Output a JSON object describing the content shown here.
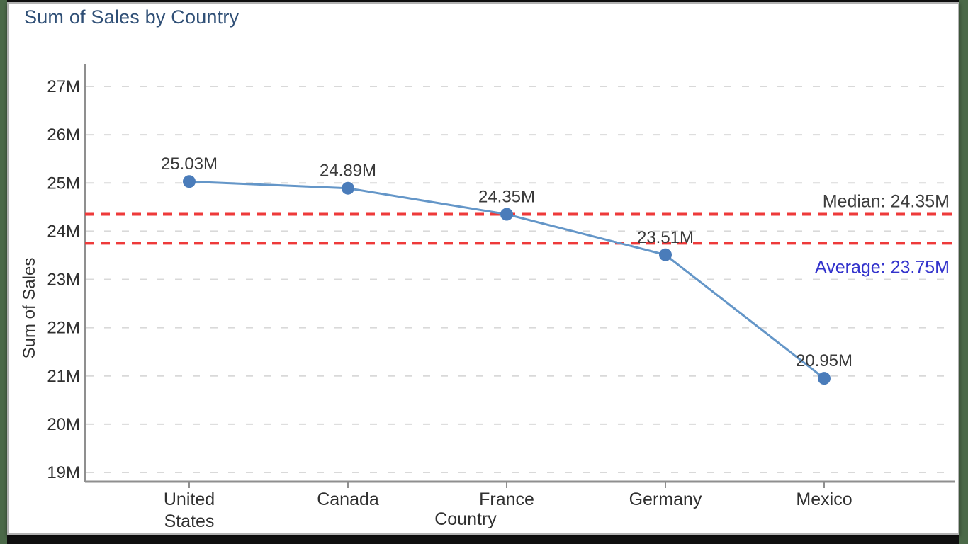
{
  "page": {
    "background_color": "#101010",
    "side_strip_color": "#4b6948"
  },
  "card": {
    "background_color": "#ffffff",
    "border_color": "#b2b2b2"
  },
  "chart": {
    "title": "Sum of Sales by Country",
    "title_color": "#2f4f76"
  },
  "chart_data": {
    "type": "line",
    "title": "Sum of Sales by Country",
    "xlabel": "Country",
    "ylabel": "Sum of Sales",
    "categories": [
      "United States",
      "Canada",
      "France",
      "Germany",
      "Mexico"
    ],
    "category_label_lines": [
      [
        "United",
        "States"
      ],
      [
        "Canada"
      ],
      [
        "France"
      ],
      [
        "Germany"
      ],
      [
        "Mexico"
      ]
    ],
    "values": [
      25.03,
      24.89,
      24.35,
      23.51,
      20.95
    ],
    "data_labels": [
      "25.03M",
      "24.89M",
      "24.35M",
      "23.51M",
      "20.95M"
    ],
    "unit": "M",
    "ylim": [
      18.8,
      27.5
    ],
    "yticks": [
      19,
      20,
      21,
      22,
      23,
      24,
      25,
      26,
      27
    ],
    "ytick_labels": [
      "19M",
      "20M",
      "21M",
      "22M",
      "23M",
      "24M",
      "25M",
      "26M",
      "27M"
    ],
    "grid": true,
    "legend": "none",
    "series_color": "#6496c8",
    "marker_color": "#4a7cba",
    "ref_lines": [
      {
        "name": "median",
        "label": "Median: 24.35M",
        "value": 24.35,
        "line_color": "#ee3a3a",
        "label_color": "#3d3d3d",
        "label_position": "above"
      },
      {
        "name": "average",
        "label": "Average: 23.75M",
        "value": 23.75,
        "line_color": "#ee3a3a",
        "label_color": "#3333cc",
        "label_position": "below"
      }
    ]
  }
}
